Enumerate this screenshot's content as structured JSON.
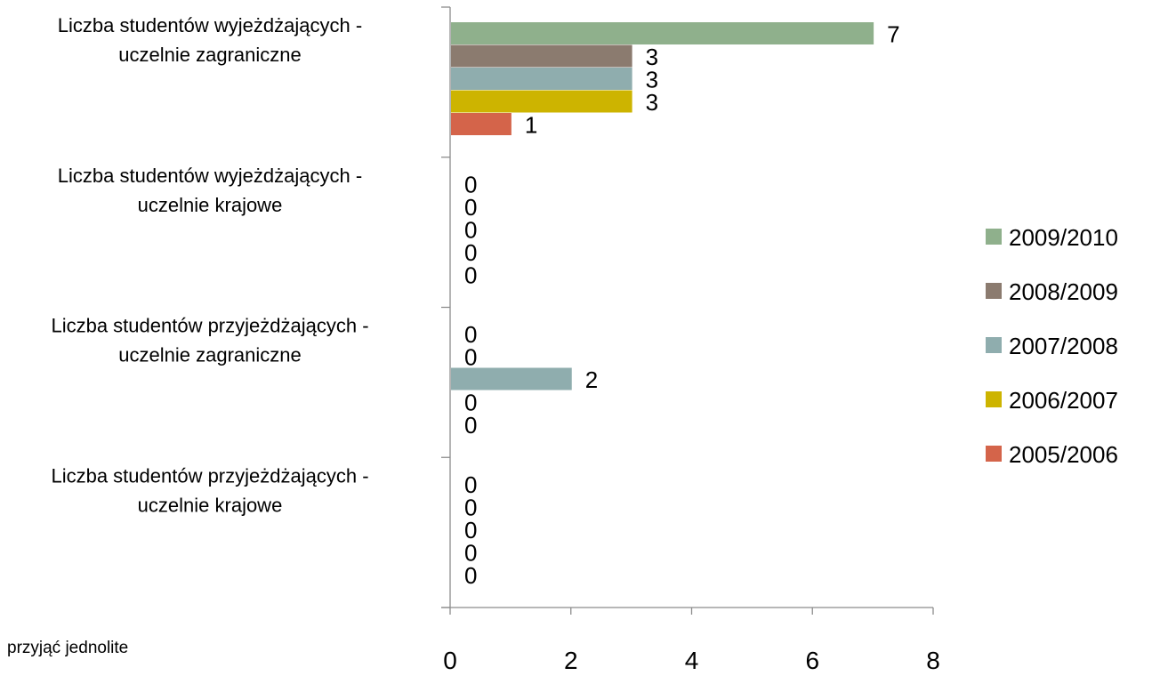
{
  "chart_data": {
    "type": "bar",
    "orientation": "horizontal",
    "title": "",
    "xlabel": "",
    "ylabel": "",
    "xlim": [
      0,
      8
    ],
    "x_ticks": [
      0,
      2,
      4,
      6,
      8
    ],
    "grid": false,
    "legend_position": "right",
    "categories": [
      [
        "Liczba studentów wyjeżdżających -",
        "uczelnie zagraniczne"
      ],
      [
        "Liczba studentów wyjeżdżających -",
        "uczelnie krajowe"
      ],
      [
        "Liczba studentów przyjeżdżających -",
        "uczelnie zagraniczne"
      ],
      [
        "Liczba studentów przyjeżdżających -",
        "uczelnie krajowe"
      ]
    ],
    "series": [
      {
        "name": "2009/2010",
        "color": "#8fb08c",
        "values": [
          7,
          0,
          0,
          0
        ]
      },
      {
        "name": "2008/2009",
        "color": "#8b7b6f",
        "values": [
          3,
          0,
          0,
          0
        ]
      },
      {
        "name": "2007/2008",
        "color": "#8fadae",
        "values": [
          3,
          0,
          2,
          0
        ]
      },
      {
        "name": "2006/2007",
        "color": "#cdb400",
        "values": [
          3,
          0,
          0,
          0
        ]
      },
      {
        "name": "2005/2006",
        "color": "#d4644a",
        "values": [
          1,
          0,
          0,
          0
        ]
      }
    ]
  },
  "footnote": "przyjąć jednolite"
}
